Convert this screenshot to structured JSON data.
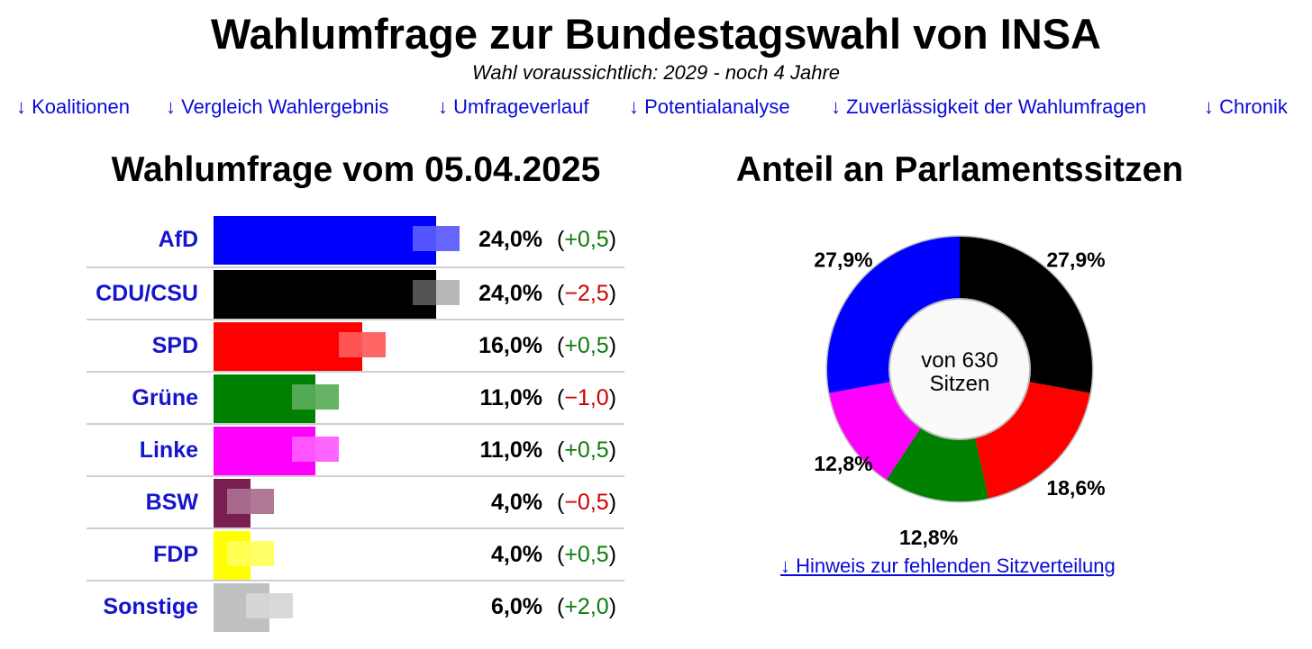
{
  "page": {
    "title": "Wahlumfrage zur Bundestagswahl von INSA",
    "subtitle": "Wahl voraussichtlich: 2029 - noch 4 Jahre",
    "nav": [
      "↓ Koalitionen",
      "↓ Vergleich Wahlergebnis",
      "↓ Umfrageverlauf",
      "↓ Potentialanalyse",
      "↓ Zuverlässigkeit der Wahlumfragen",
      "↓ Chronik"
    ],
    "seat_note": "↓ Hinweis zur fehlenden Sitzverteilung"
  },
  "chart_data": [
    {
      "type": "bar",
      "orientation": "horizontal",
      "title": "Wahlumfrage vom 05.04.2025",
      "categories": [
        "AfD",
        "CDU/CSU",
        "SPD",
        "Grüne",
        "Linke",
        "BSW",
        "FDP",
        "Sonstige"
      ],
      "values": [
        24.0,
        24.0,
        16.0,
        11.0,
        11.0,
        4.0,
        4.0,
        6.0
      ],
      "value_labels": [
        "24,0%",
        "24,0%",
        "16,0%",
        "11,0%",
        "11,0%",
        "4,0%",
        "4,0%",
        "6,0%"
      ],
      "changes": [
        0.5,
        -2.5,
        0.5,
        -1.0,
        0.5,
        -0.5,
        0.5,
        2.0
      ],
      "change_labels": [
        "+0,5",
        "−2,5",
        "+0,5",
        "−1,0",
        "+0,5",
        "−0,5",
        "+0,5",
        "+2,0"
      ],
      "colors": [
        "#0000ff",
        "#000000",
        "#ff0000",
        "#008000",
        "#ff00ff",
        "#7a1f4f",
        "#ffff00",
        "#c0c0c0"
      ],
      "change_colors": {
        "positive": "#0d7a0d",
        "negative": "#cc0000"
      },
      "xlim": [
        0,
        24
      ]
    },
    {
      "type": "pie",
      "style": "donut",
      "title": "Anteil an Parlamentssitzen",
      "center_label_line1": "von 630",
      "center_label_line2": "Sitzen",
      "slices": [
        {
          "party": "CDU/CSU",
          "value": 27.9,
          "label": "27,9%",
          "color": "#000000"
        },
        {
          "party": "SPD",
          "value": 18.6,
          "label": "18,6%",
          "color": "#ff0000"
        },
        {
          "party": "Grüne",
          "value": 12.8,
          "label": "12,8%",
          "color": "#008000"
        },
        {
          "party": "Linke",
          "value": 12.8,
          "label": "12,8%",
          "color": "#ff00ff"
        },
        {
          "party": "AfD",
          "value": 27.9,
          "label": "27,9%",
          "color": "#0000ff"
        }
      ]
    }
  ]
}
